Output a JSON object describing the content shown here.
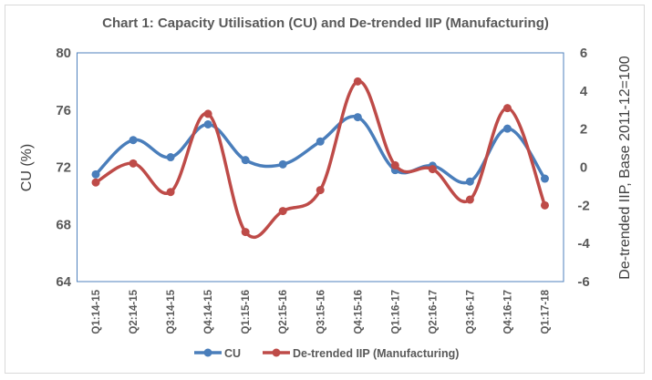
{
  "chart_data": {
    "type": "line",
    "title": "Chart 1: Capacity Utilisation (CU) and De-trended IIP (Manufacturing)",
    "xlabel": "",
    "ylabel": "CU (%)",
    "y2label": "De-trended IIP, Base 2011-12=100",
    "categories": [
      "Q1:14-15",
      "Q2:14-15",
      "Q3:14-15",
      "Q4:14-15",
      "Q1:15-16",
      "Q2:15-16",
      "Q3:15-16",
      "Q4:15-16",
      "Q1:16-17",
      "Q2:16-17",
      "Q3:16-17",
      "Q4:16-17",
      "Q1:17-18"
    ],
    "ylim": [
      64,
      80
    ],
    "yticks": [
      64,
      68,
      72,
      76,
      80
    ],
    "y2lim": [
      -6,
      6
    ],
    "y2ticks": [
      -6,
      -4,
      -2,
      0,
      2,
      4,
      6
    ],
    "grid": false,
    "legend_position": "bottom",
    "series": [
      {
        "name": "CU",
        "axis": "left",
        "color": "#4a7ebb",
        "values": [
          71.5,
          73.9,
          72.7,
          75.0,
          72.5,
          72.2,
          73.8,
          75.5,
          71.8,
          72.1,
          71.0,
          74.7,
          71.2
        ]
      },
      {
        "name": "De-trended IIP (Manufacturing)",
        "axis": "right",
        "color": "#be4b48",
        "values": [
          -0.8,
          0.2,
          -1.3,
          2.8,
          -3.4,
          -2.3,
          -1.2,
          4.5,
          0.1,
          -0.1,
          -1.7,
          3.1,
          -2.0
        ]
      }
    ]
  }
}
